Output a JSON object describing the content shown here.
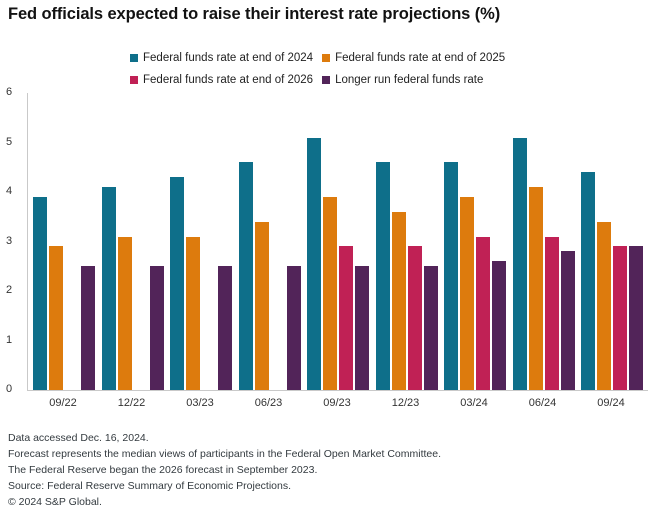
{
  "title": "Fed officials expected to raise their interest rate projections (%)",
  "chart_data": {
    "type": "bar",
    "categories": [
      "09/22",
      "12/22",
      "03/23",
      "06/23",
      "09/23",
      "12/23",
      "03/24",
      "06/24",
      "09/24"
    ],
    "series": [
      {
        "name": "Federal funds rate at end of 2024",
        "color": "#0e6f8a",
        "values": [
          3.9,
          4.1,
          4.3,
          4.6,
          5.1,
          4.6,
          4.6,
          5.1,
          4.4
        ]
      },
      {
        "name": "Federal funds rate at end of 2025",
        "color": "#dd7b0d",
        "values": [
          2.9,
          3.1,
          3.1,
          3.4,
          3.9,
          3.6,
          3.9,
          4.1,
          3.4
        ]
      },
      {
        "name": "Federal funds rate at end of 2026",
        "color": "#c02155",
        "values": [
          null,
          null,
          null,
          null,
          2.9,
          2.9,
          3.1,
          3.1,
          2.9
        ]
      },
      {
        "name": "Longer run federal funds rate",
        "color": "#522459",
        "values": [
          2.5,
          2.5,
          2.5,
          2.5,
          2.5,
          2.5,
          2.6,
          2.8,
          2.9
        ]
      }
    ],
    "title": "Fed officials expected to raise their interest rate projections (%)",
    "xlabel": "",
    "ylabel": "",
    "ylim": [
      0,
      6
    ],
    "yticks": [
      0,
      1,
      2,
      3,
      4,
      5,
      6
    ],
    "grid": false,
    "legend_position": "top-center",
    "legend_rows": [
      [
        0,
        1
      ],
      [
        2,
        3
      ]
    ],
    "axis_line_color": "#c9c9c9",
    "tick_label_color": "#333333"
  },
  "footnotes": [
    "Data accessed Dec. 16, 2024.",
    "Forecast represents the median views of participants in the Federal Open Market Committee.",
    "The Federal Reserve began the 2026 forecast in September 2023.",
    "Source: Federal Reserve Summary of Economic Projections.",
    "© 2024 S&P Global."
  ]
}
